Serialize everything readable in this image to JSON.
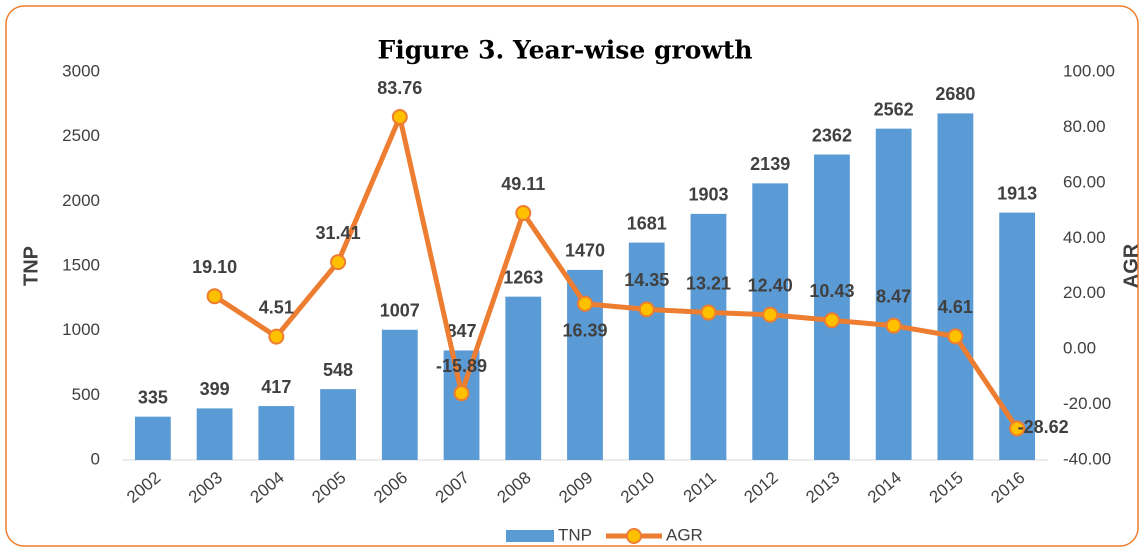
{
  "chart_data": {
    "type": "bar_line",
    "title": "Figure 3. Year-wise growth",
    "y_label": "TNP",
    "y2_label": "AGR",
    "categories": [
      "2002",
      "2003",
      "2004",
      "2005",
      "2006",
      "2007",
      "2008",
      "2009",
      "2010",
      "2011",
      "2012",
      "2013",
      "2014",
      "2015",
      "2016"
    ],
    "series": [
      {
        "name": "TNP",
        "type": "bar",
        "color": "#5b9bd5",
        "values": [
          335,
          399,
          417,
          548,
          1007,
          847,
          1263,
          1470,
          1681,
          1903,
          2139,
          2362,
          2562,
          2680,
          1913
        ]
      },
      {
        "name": "AGR",
        "type": "line",
        "axis": "y2",
        "color": "#ed7d31",
        "marker_color": "#ffc000",
        "values": [
          null,
          19.1,
          4.51,
          31.41,
          83.76,
          -15.89,
          49.11,
          16.39,
          14.35,
          13.21,
          12.4,
          10.43,
          8.47,
          4.61,
          -28.62
        ],
        "value_labels": [
          null,
          "19.10",
          "4.51",
          "31.41",
          "83.76",
          "-15.89",
          "49.11",
          "16.39",
          "14.35",
          "13.21",
          "12.40",
          "10.43",
          "8.47",
          "4.61",
          "-28.62"
        ]
      }
    ],
    "ylim": [
      0,
      3000
    ],
    "yticks": [
      0,
      500,
      1000,
      1500,
      2000,
      2500,
      3000
    ],
    "y2lim": [
      -40,
      100
    ],
    "y2ticks": [
      {
        "value": -40,
        "label": "-40.00"
      },
      {
        "value": -20,
        "label": "-20.00"
      },
      {
        "value": 0,
        "label": "0.00"
      },
      {
        "value": 20,
        "label": "20.00"
      },
      {
        "value": 40,
        "label": "40.00"
      },
      {
        "value": 60,
        "label": "60.00"
      },
      {
        "value": 80,
        "label": "80.00"
      },
      {
        "value": 100,
        "label": "100.00"
      }
    ],
    "grid": false,
    "legend": "bottom"
  }
}
